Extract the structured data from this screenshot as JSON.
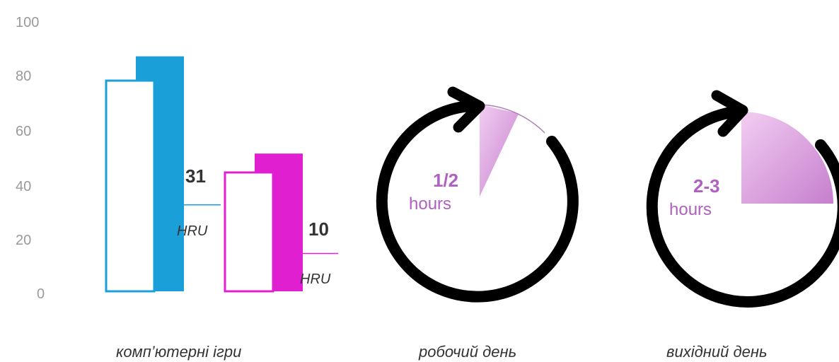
{
  "chart_data": [
    {
      "type": "bar",
      "title": "",
      "yticks": [
        "0",
        "20",
        "40",
        "60",
        "80",
        "100"
      ],
      "ylim": [
        0,
        100
      ],
      "grid": false,
      "series": [
        {
          "values": [
            78,
            44
          ],
          "style": "outline"
        },
        {
          "values": [
            87,
            51
          ],
          "style": "filled"
        }
      ],
      "colors": [
        "#1a9fd8",
        "#e020d0"
      ],
      "annotations": [
        {
          "value": "31",
          "unit": "HRU",
          "level": 32
        },
        {
          "value": "10",
          "unit": "HRU",
          "level": 14
        }
      ],
      "caption": "комп’ютерні ігри"
    },
    {
      "type": "pie",
      "value": "1/2",
      "unit": "hours",
      "fraction": 0.07,
      "caption": "робочий день"
    },
    {
      "type": "pie",
      "value": "2-3",
      "unit": "hours",
      "fraction": 0.25,
      "caption": "вихідний день"
    }
  ],
  "colors": {
    "accent": "#b060c0",
    "wedge": "#d8a0e0",
    "ring": "#000000"
  }
}
